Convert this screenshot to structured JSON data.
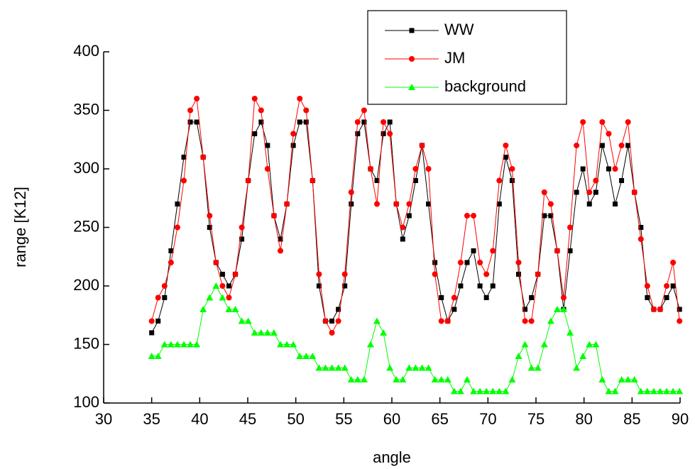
{
  "chart_data": {
    "type": "line",
    "x_label": "angle",
    "y_label": "range [K12]",
    "x": [
      35,
      35.67,
      36.34,
      37.01,
      37.68,
      38.35,
      39.02,
      39.69,
      40.36,
      41.03,
      41.7,
      42.37,
      43.04,
      43.71,
      44.38,
      45.05,
      45.72,
      46.39,
      47.06,
      47.73,
      48.4,
      49.07,
      49.74,
      50.41,
      51.08,
      51.75,
      52.42,
      53.09,
      53.76,
      54.43,
      55.1,
      55.77,
      56.44,
      57.11,
      57.78,
      58.45,
      59.12,
      59.79,
      60.46,
      61.13,
      61.8,
      62.47,
      63.14,
      63.81,
      64.48,
      65.15,
      65.82,
      66.49,
      67.16,
      67.83,
      68.5,
      69.17,
      69.84,
      70.51,
      71.18,
      71.85,
      72.52,
      73.19,
      73.86,
      74.53,
      75.2,
      75.87,
      76.54,
      77.21,
      77.88,
      78.55,
      79.22,
      79.89,
      80.56,
      81.23,
      81.9,
      82.57,
      83.24,
      83.91,
      84.58,
      85.25,
      85.92,
      86.59,
      87.26,
      87.93,
      88.6,
      89.27,
      89.94
    ],
    "series": [
      {
        "name": "WW",
        "color": "#000000",
        "marker": "square",
        "values": [
          160,
          170,
          190,
          230,
          270,
          310,
          340,
          340,
          310,
          250,
          220,
          210,
          200,
          210,
          240,
          290,
          330,
          340,
          320,
          260,
          240,
          270,
          320,
          340,
          340,
          290,
          200,
          170,
          170,
          180,
          200,
          270,
          330,
          340,
          300,
          290,
          330,
          340,
          270,
          240,
          260,
          290,
          320,
          270,
          220,
          190,
          170,
          180,
          200,
          220,
          230,
          200,
          190,
          200,
          270,
          310,
          290,
          210,
          180,
          190,
          210,
          260,
          260,
          230,
          180,
          230,
          280,
          300,
          270,
          280,
          320,
          300,
          270,
          290,
          320,
          280,
          250,
          190,
          180,
          180,
          190,
          200,
          180
        ]
      },
      {
        "name": "JM",
        "color": "#ff0000",
        "marker": "circle",
        "values": [
          170,
          190,
          200,
          220,
          250,
          290,
          350,
          360,
          310,
          260,
          220,
          200,
          190,
          210,
          250,
          290,
          360,
          350,
          300,
          260,
          230,
          270,
          330,
          360,
          350,
          290,
          210,
          170,
          160,
          170,
          210,
          280,
          340,
          350,
          300,
          270,
          340,
          330,
          270,
          250,
          270,
          300,
          320,
          300,
          210,
          170,
          170,
          190,
          220,
          260,
          260,
          220,
          210,
          230,
          290,
          320,
          300,
          220,
          170,
          170,
          210,
          280,
          270,
          230,
          190,
          250,
          320,
          340,
          280,
          290,
          340,
          330,
          300,
          320,
          340,
          280,
          240,
          200,
          180,
          180,
          200,
          220,
          170
        ]
      },
      {
        "name": "background",
        "color": "#00ff00",
        "marker": "triangle",
        "values": [
          140,
          140,
          150,
          150,
          150,
          150,
          150,
          150,
          180,
          190,
          200,
          190,
          180,
          180,
          170,
          170,
          160,
          160,
          160,
          160,
          150,
          150,
          150,
          140,
          140,
          140,
          130,
          130,
          130,
          130,
          130,
          120,
          120,
          120,
          150,
          170,
          160,
          130,
          120,
          120,
          130,
          130,
          130,
          130,
          120,
          120,
          120,
          110,
          110,
          120,
          110,
          110,
          110,
          110,
          110,
          110,
          120,
          140,
          150,
          130,
          130,
          150,
          170,
          180,
          180,
          160,
          130,
          140,
          150,
          150,
          120,
          110,
          110,
          120,
          120,
          120,
          110,
          110,
          110,
          110,
          110,
          110,
          110
        ]
      }
    ],
    "xlim": [
      30,
      90
    ],
    "xticks": [
      30,
      35,
      40,
      45,
      50,
      55,
      60,
      65,
      70,
      75,
      80,
      85,
      90
    ],
    "ylim": [
      100,
      400
    ],
    "yticks": [
      100,
      150,
      200,
      250,
      300,
      350,
      400
    ],
    "legend": "top-right"
  }
}
